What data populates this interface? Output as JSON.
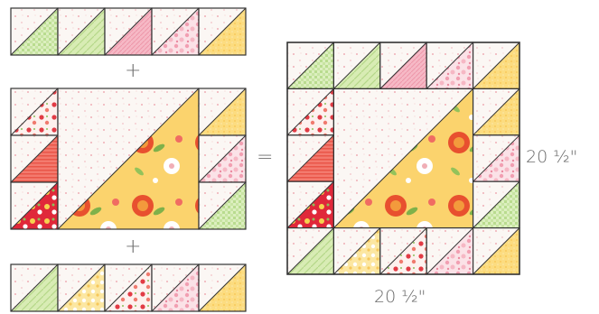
{
  "diagram": {
    "plus_top": "+",
    "plus_bottom": "+",
    "equals": "=",
    "height_label": "20 ½\"",
    "width_label": "20 ½\""
  },
  "colors": {
    "outline": "#333333",
    "background_print": "#fbf7f4",
    "dot_pink": "#f0aeb6",
    "light_green": "#cfe6a8",
    "green_print": "#bfe09a",
    "pink": "#f2a8b8",
    "pink_floral": "#f5c2cf",
    "yellow": "#fbd672",
    "red_floral": "#e0283a",
    "coral": "#f06c62",
    "large_yellow_floral": "#fbd36d",
    "flower_red": "#e8502f",
    "flower_orange": "#f39a3c",
    "leaf_green": "#7fb14a"
  },
  "blocks": [
    "top-row",
    "center-block",
    "bottom-row",
    "finished-block"
  ]
}
